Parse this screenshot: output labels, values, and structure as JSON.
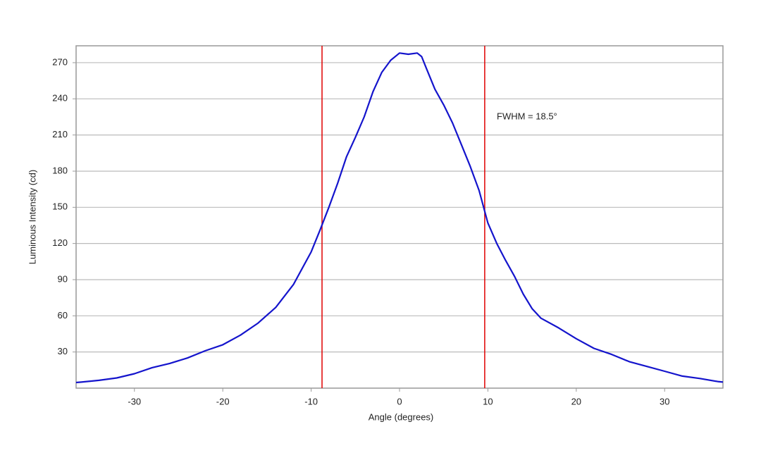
{
  "chart_data": {
    "type": "line",
    "xlabel": "Angle (degrees)",
    "ylabel": "Luminous Intensity (cd)",
    "annotation": "FWHM = 18.5°",
    "x": [
      -36.6,
      -36,
      -34,
      -32,
      -30,
      -28,
      -26,
      -24,
      -22,
      -20,
      -18,
      -16,
      -14,
      -12,
      -10,
      -9,
      -8,
      -7,
      -6,
      -5,
      -4,
      -3,
      -2,
      -1,
      0,
      1,
      2,
      2.5,
      3,
      4,
      5,
      6,
      7,
      8,
      9,
      10,
      11,
      12,
      13,
      14,
      15,
      16,
      18,
      20,
      22,
      24,
      26,
      28,
      30,
      32,
      34,
      36,
      36.6
    ],
    "series": [
      {
        "name": "Luminous Intensity",
        "color": "#1414cc",
        "values": [
          4.7,
          5,
          6.5,
          8.5,
          12,
          17,
          20.5,
          25,
          31,
          36,
          44,
          54,
          67,
          86,
          113,
          131,
          150,
          170,
          192,
          208,
          225,
          246,
          262,
          272,
          278,
          277,
          278,
          275,
          266,
          248,
          235,
          220,
          202,
          184,
          164,
          137,
          120,
          106,
          93,
          78,
          66,
          58,
          50,
          41,
          33,
          28,
          22,
          18,
          14,
          10,
          8,
          5.5,
          5
        ]
      }
    ],
    "vlines": [
      -8.77,
      9.64
    ],
    "vline_color": "#e00000",
    "xlim": [
      -36.6,
      36.6
    ],
    "ylim": [
      0,
      284
    ],
    "xticks": [
      -30,
      -20,
      -10,
      0,
      10,
      20,
      30
    ],
    "yticks": [
      30,
      60,
      90,
      120,
      150,
      180,
      210,
      240,
      270
    ],
    "grid": true
  }
}
